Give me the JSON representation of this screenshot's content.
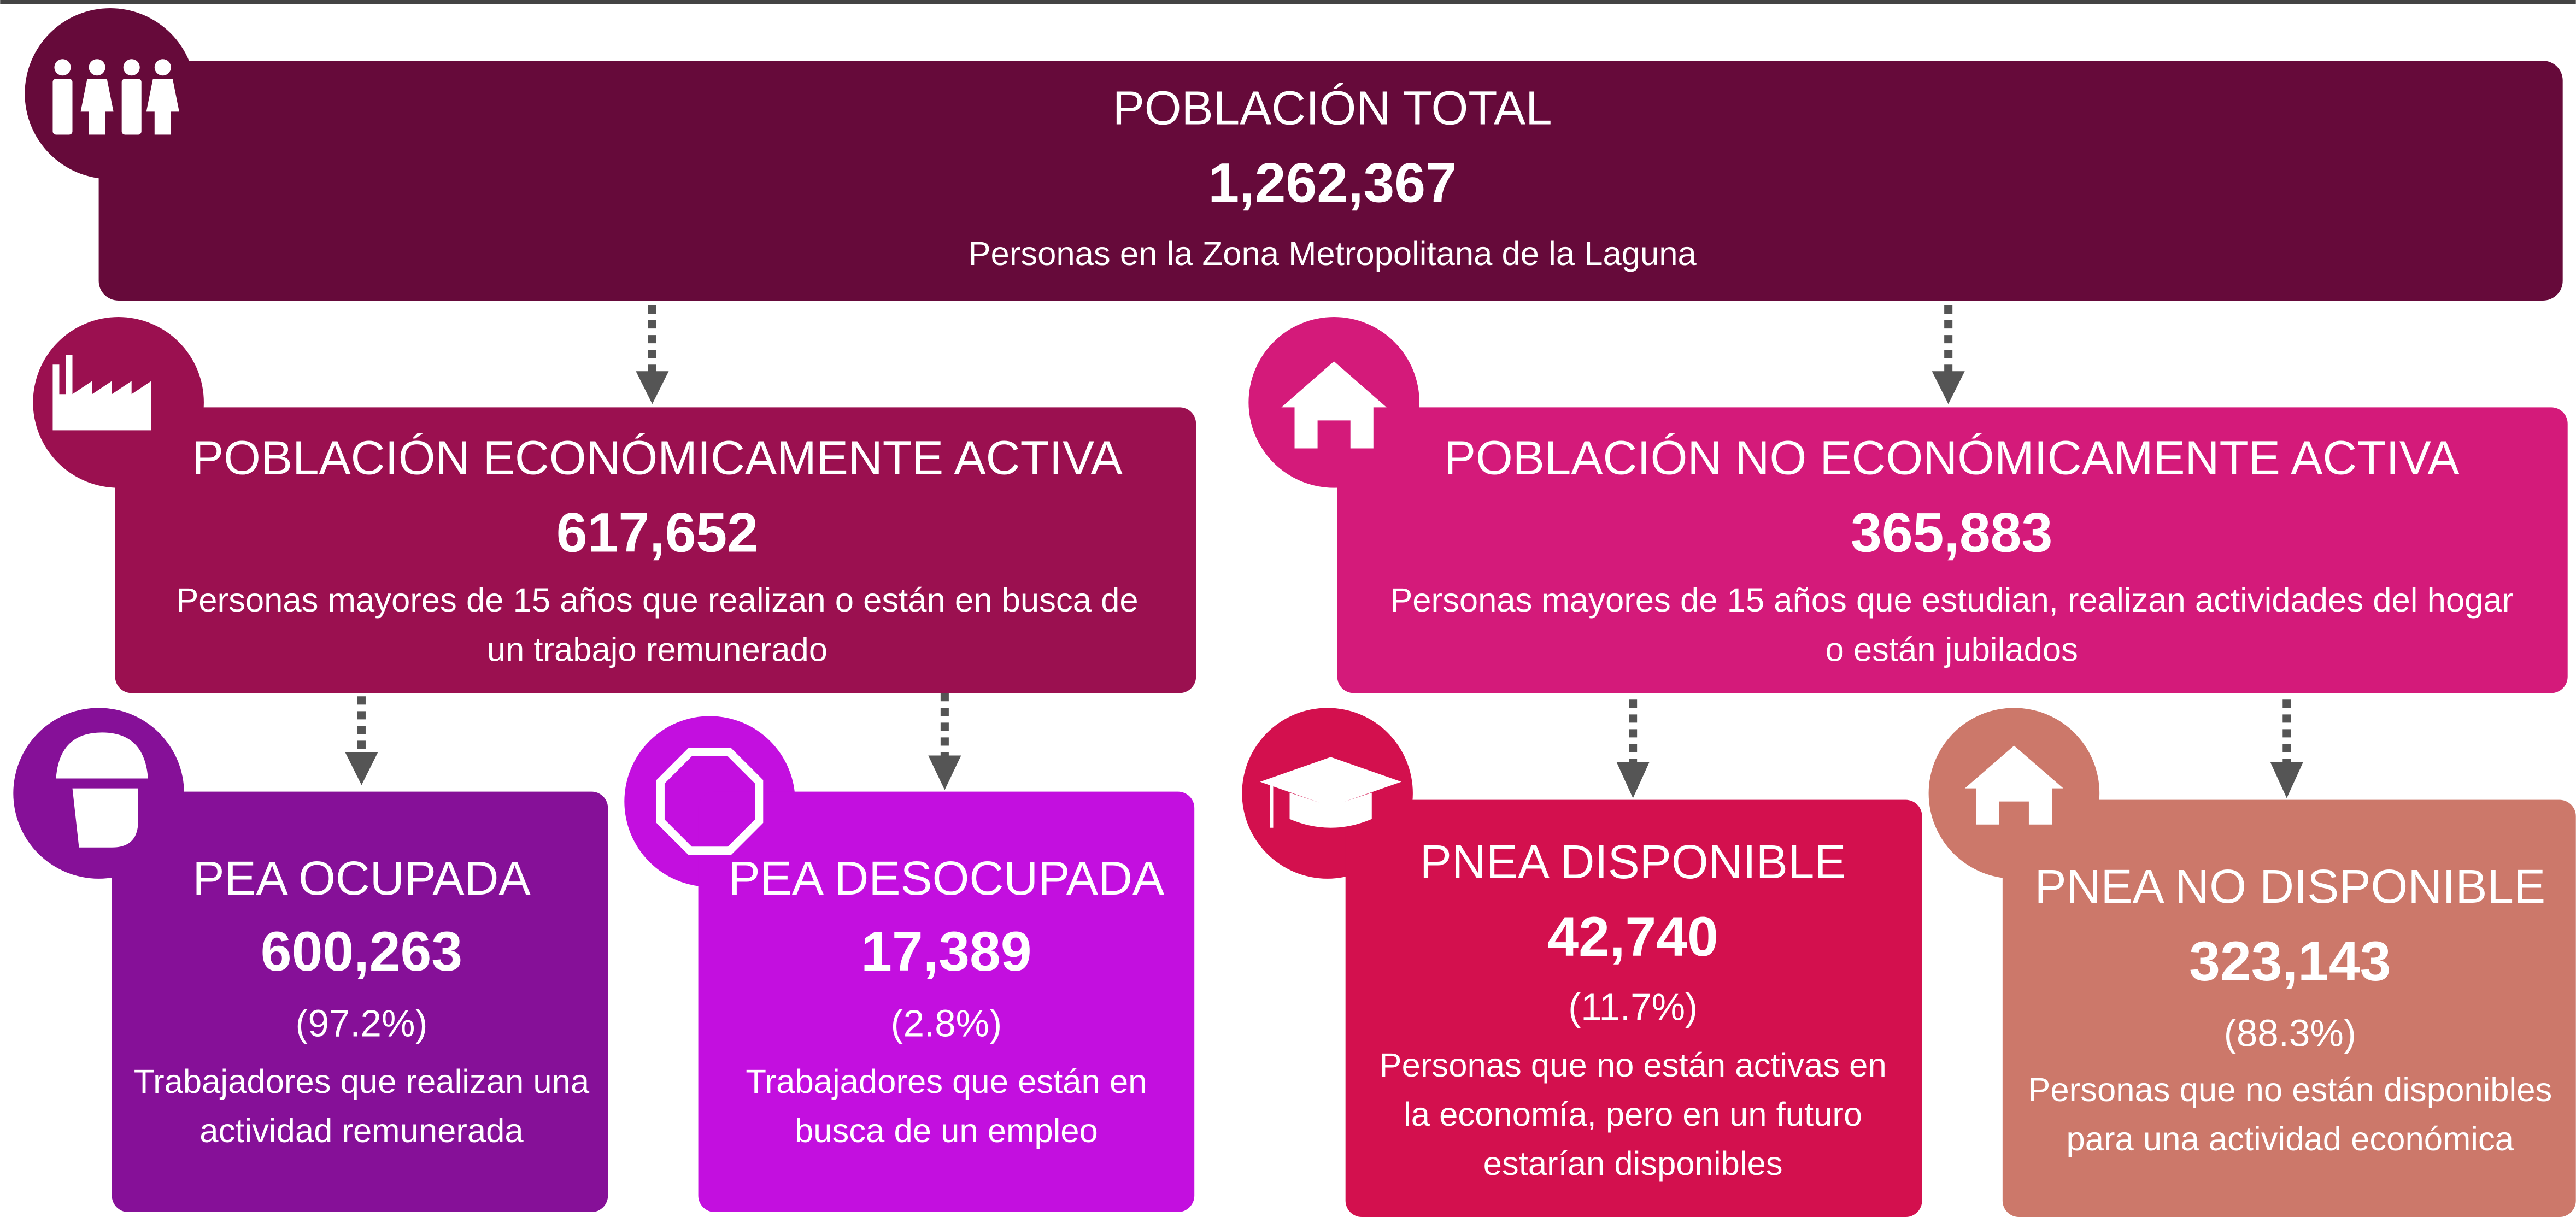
{
  "total": {
    "title": "POBLACIÓN TOTAL",
    "value": "1,262,367",
    "desc": [
      "Personas en la Zona Metropolitana de la Laguna"
    ]
  },
  "pea": {
    "title": "POBLACIÓN ECONÓMICAMENTE  ACTIVA",
    "value": "617,652",
    "desc": [
      "Personas mayores de 15 años que realizan o están en busca de",
      "un trabajo remunerado"
    ]
  },
  "pnea": {
    "title": "POBLACIÓN  NO ECONÓMICAMENTE  ACTIVA",
    "value": "365,883",
    "desc": [
      "Personas mayores de 15 años que estudian, realizan actividades del hogar",
      "o están jubilados"
    ]
  },
  "pea_ocupada": {
    "title": "PEA OCUPADA",
    "value": "600,263",
    "percent": "(97.2%)",
    "desc": [
      "Trabajadores que realizan una",
      "actividad remunerada"
    ]
  },
  "pea_desocupada": {
    "title": "PEA DESOCUPADA",
    "value": "17,389",
    "percent": "(2.8%)",
    "desc": [
      "Trabajadores que están en",
      "busca de un empleo"
    ]
  },
  "pnea_disponible": {
    "title": "PNEA DISPONIBLE",
    "value": "42,740",
    "percent": "(11.7%)",
    "desc": [
      "Personas que no están activas en",
      "la economía, pero en un futuro",
      "estarían disponibles"
    ]
  },
  "pnea_no_disponible": {
    "title": "PNEA NO DISPONIBLE",
    "value": "323,143",
    "percent": "(88.3%)",
    "desc": [
      "Personas que no están disponibles",
      "para una actividad económica"
    ]
  }
}
